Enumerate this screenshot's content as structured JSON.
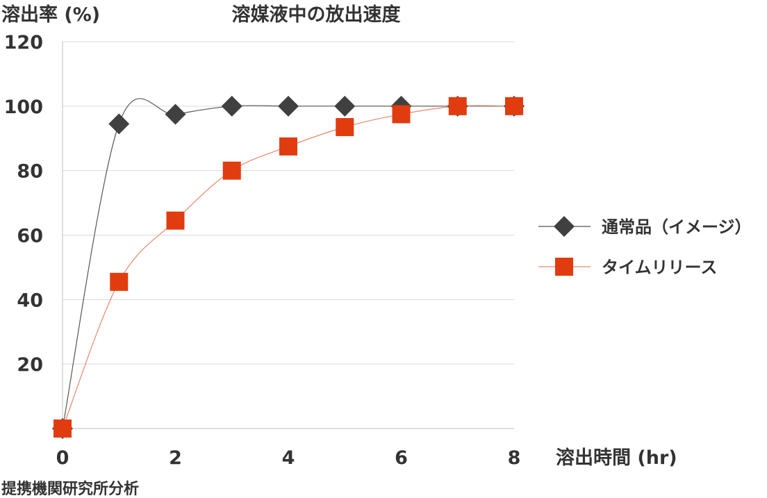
{
  "chart_data": {
    "type": "line",
    "title": "溶媒液中の放出速度",
    "ylabel": "溶出率 (%)",
    "xlabel": "溶出時間 (hr)",
    "xlim": [
      0,
      8
    ],
    "ylim": [
      0,
      120
    ],
    "x_ticks": [
      "0",
      "2",
      "4",
      "6",
      "8"
    ],
    "y_ticks": [
      "20",
      "40",
      "60",
      "80",
      "100",
      "120"
    ],
    "grid": true,
    "legend_position": "right",
    "series": [
      {
        "name": "通常品（イメージ）",
        "marker": "diamond",
        "color": "#404040",
        "line_color": "#555555",
        "x": [
          0,
          1,
          2,
          3,
          4,
          5,
          6,
          7,
          8
        ],
        "values": [
          0,
          94.5,
          97.5,
          100,
          100,
          100,
          100,
          100,
          100
        ]
      },
      {
        "name": "タイムリリース",
        "marker": "square",
        "color": "#e13c0f",
        "line_color": "#e8866a",
        "x": [
          0,
          1,
          2,
          3,
          4,
          5,
          6,
          7,
          8
        ],
        "values": [
          0,
          45.5,
          64.5,
          80,
          87.5,
          93.5,
          97.5,
          100,
          100
        ]
      }
    ]
  },
  "source_note": "提携機関研究所分析"
}
